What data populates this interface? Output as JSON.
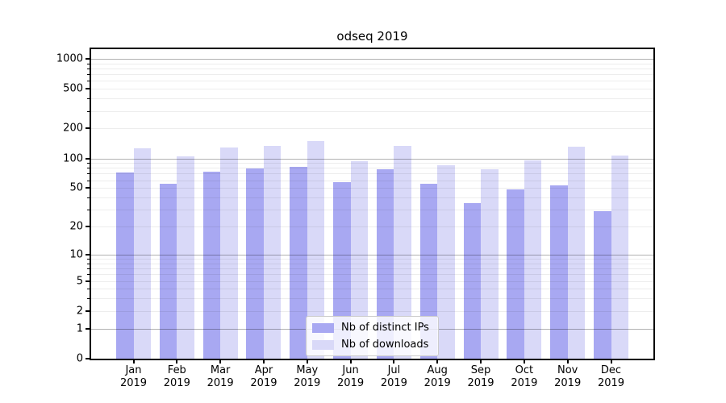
{
  "figure": {
    "background": "#ffffff",
    "axis_color": "#000000"
  },
  "chart_data": {
    "type": "bar",
    "title": "odseq 2019",
    "year_label": "2019",
    "categories": [
      "Jan",
      "Feb",
      "Mar",
      "Apr",
      "May",
      "Jun",
      "Jul",
      "Aug",
      "Sep",
      "Oct",
      "Nov",
      "Dec"
    ],
    "series": [
      {
        "name": "Nb of distinct IPs",
        "color": "#a8a8f2",
        "values": [
          72,
          55,
          74,
          79,
          82,
          57,
          78,
          55,
          35,
          48,
          53,
          29
        ]
      },
      {
        "name": "Nb of downloads",
        "color": "#d9d9f8",
        "values": [
          127,
          104,
          130,
          134,
          150,
          93,
          133,
          85,
          77,
          95,
          132,
          106
        ]
      }
    ],
    "y_scale": "log1p",
    "ylim": [
      0,
      1250
    ],
    "y_ticks": [
      1000,
      500,
      200,
      100,
      50,
      20,
      10,
      5,
      2,
      1,
      0
    ],
    "grid": "on",
    "major_grid_color": "rgba(0,0,0,0.30)",
    "minor_grid_color": "rgba(0,0,0,0.07)",
    "legend_position": "lower center inside plot",
    "legend_labels": [
      "Nb of distinct IPs",
      "Nb of downloads"
    ]
  }
}
